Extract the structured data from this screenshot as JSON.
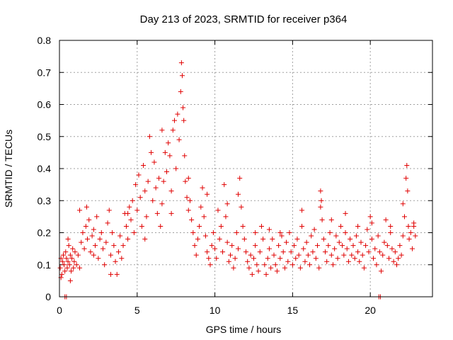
{
  "chart_data": {
    "type": "scatter",
    "title": "Day 213 of 2023, SRMTID for receiver p364",
    "xlabel": "GPS time / hours",
    "ylabel": "SRMTID / TECUs",
    "xlim": [
      0,
      24
    ],
    "ylim": [
      0,
      0.8
    ],
    "xticks": [
      0,
      5,
      10,
      15,
      20
    ],
    "yticks": [
      0,
      0.1,
      0.2,
      0.3,
      0.4,
      0.5,
      0.6,
      0.7,
      0.8
    ],
    "x_tick_labels": [
      "0",
      "5",
      "10",
      "15",
      "20"
    ],
    "y_tick_labels": [
      "0",
      "0.1",
      "0.2",
      "0.3",
      "0.4",
      "0.5",
      "0.6",
      "0.7",
      "0.8"
    ],
    "grid": true,
    "marker": "+",
    "color": "#e00000",
    "series": [
      {
        "name": "SRMTID",
        "points": [
          [
            0.05,
            0.09
          ],
          [
            0.1,
            0.12
          ],
          [
            0.15,
            0.07
          ],
          [
            0.2,
            0.11
          ],
          [
            0.25,
            0.13
          ],
          [
            0.3,
            0.1
          ],
          [
            0.35,
            0.08
          ],
          [
            0.4,
            0.14
          ],
          [
            0.45,
            0.12
          ],
          [
            0.5,
            0.09
          ],
          [
            0.55,
            0.11
          ],
          [
            0.6,
            0.16
          ],
          [
            0.65,
            0.1
          ],
          [
            0.7,
            0.13
          ],
          [
            0.75,
            0.08
          ],
          [
            0.8,
            0.12
          ],
          [
            0.85,
            0.15
          ],
          [
            0.9,
            0.09
          ],
          [
            0.95,
            0.11
          ],
          [
            1.0,
            0.14
          ],
          [
            0.1,
            0.06
          ],
          [
            0.35,
            0.0
          ],
          [
            0.45,
            0.0
          ],
          [
            0.55,
            0.18
          ],
          [
            0.7,
            0.05
          ],
          [
            1.1,
            0.1
          ],
          [
            1.2,
            0.13
          ],
          [
            1.3,
            0.09
          ],
          [
            1.4,
            0.17
          ],
          [
            1.5,
            0.2
          ],
          [
            1.6,
            0.15
          ],
          [
            1.7,
            0.22
          ],
          [
            1.75,
            0.28
          ],
          [
            1.8,
            0.18
          ],
          [
            1.9,
            0.24
          ],
          [
            2.0,
            0.14
          ],
          [
            2.1,
            0.19
          ],
          [
            2.2,
            0.21
          ],
          [
            2.3,
            0.16
          ],
          [
            2.4,
            0.25
          ],
          [
            2.5,
            0.12
          ],
          [
            2.6,
            0.18
          ],
          [
            2.7,
            0.2
          ],
          [
            2.8,
            0.15
          ],
          [
            2.9,
            0.1
          ],
          [
            3.0,
            0.17
          ],
          [
            3.1,
            0.23
          ],
          [
            3.2,
            0.27
          ],
          [
            3.3,
            0.13
          ],
          [
            3.4,
            0.2
          ],
          [
            3.5,
            0.16
          ],
          [
            3.6,
            0.11
          ],
          [
            3.7,
            0.07
          ],
          [
            3.8,
            0.14
          ],
          [
            3.9,
            0.19
          ],
          [
            4.0,
            0.12
          ],
          [
            4.1,
            0.16
          ],
          [
            4.2,
            0.26
          ],
          [
            4.3,
            0.22
          ],
          [
            4.4,
            0.18
          ],
          [
            4.5,
            0.28
          ],
          [
            4.6,
            0.24
          ],
          [
            4.7,
            0.3
          ],
          [
            4.8,
            0.2
          ],
          [
            4.9,
            0.35
          ],
          [
            5.0,
            0.27
          ],
          [
            5.1,
            0.38
          ],
          [
            5.2,
            0.31
          ],
          [
            5.3,
            0.22
          ],
          [
            5.4,
            0.41
          ],
          [
            5.5,
            0.33
          ],
          [
            5.6,
            0.25
          ],
          [
            5.7,
            0.36
          ],
          [
            5.8,
            0.5
          ],
          [
            5.9,
            0.45
          ],
          [
            6.0,
            0.3
          ],
          [
            6.1,
            0.42
          ],
          [
            6.2,
            0.34
          ],
          [
            6.3,
            0.26
          ],
          [
            6.4,
            0.37
          ],
          [
            6.5,
            0.22
          ],
          [
            6.6,
            0.29
          ],
          [
            6.7,
            0.36
          ],
          [
            6.8,
            0.45
          ],
          [
            6.9,
            0.39
          ],
          [
            7.0,
            0.48
          ],
          [
            7.1,
            0.44
          ],
          [
            7.2,
            0.33
          ],
          [
            7.3,
            0.52
          ],
          [
            7.4,
            0.55
          ],
          [
            7.5,
            0.4
          ],
          [
            7.6,
            0.57
          ],
          [
            7.7,
            0.49
          ],
          [
            7.8,
            0.64
          ],
          [
            7.85,
            0.73
          ],
          [
            7.9,
            0.69
          ],
          [
            7.95,
            0.59
          ],
          [
            8.0,
            0.55
          ],
          [
            8.05,
            0.44
          ],
          [
            8.1,
            0.36
          ],
          [
            8.2,
            0.31
          ],
          [
            8.3,
            0.27
          ],
          [
            8.4,
            0.3
          ],
          [
            8.5,
            0.24
          ],
          [
            8.6,
            0.2
          ],
          [
            8.7,
            0.16
          ],
          [
            8.8,
            0.13
          ],
          [
            8.9,
            0.18
          ],
          [
            9.0,
            0.22
          ],
          [
            9.1,
            0.28
          ],
          [
            9.2,
            0.34
          ],
          [
            9.3,
            0.25
          ],
          [
            9.4,
            0.19
          ],
          [
            9.5,
            0.14
          ],
          [
            9.6,
            0.12
          ],
          [
            9.7,
            0.1
          ],
          [
            9.8,
            0.16
          ],
          [
            9.9,
            0.2
          ],
          [
            10.0,
            0.15
          ],
          [
            10.1,
            0.12
          ],
          [
            10.2,
            0.27
          ],
          [
            10.3,
            0.18
          ],
          [
            10.4,
            0.22
          ],
          [
            10.5,
            0.14
          ],
          [
            10.6,
            0.35
          ],
          [
            10.7,
            0.25
          ],
          [
            10.8,
            0.17
          ],
          [
            10.9,
            0.11
          ],
          [
            11.0,
            0.13
          ],
          [
            11.1,
            0.16
          ],
          [
            11.2,
            0.09
          ],
          [
            11.3,
            0.12
          ],
          [
            11.4,
            0.2
          ],
          [
            11.5,
            0.15
          ],
          [
            11.6,
            0.37
          ],
          [
            11.7,
            0.28
          ],
          [
            11.8,
            0.22
          ],
          [
            11.9,
            0.18
          ],
          [
            12.0,
            0.14
          ],
          [
            12.1,
            0.11
          ],
          [
            12.2,
            0.09
          ],
          [
            12.3,
            0.13
          ],
          [
            12.4,
            0.07
          ],
          [
            12.5,
            0.12
          ],
          [
            12.6,
            0.16
          ],
          [
            12.7,
            0.1
          ],
          [
            12.8,
            0.08
          ],
          [
            12.9,
            0.14
          ],
          [
            13.0,
            0.22
          ],
          [
            13.1,
            0.18
          ],
          [
            13.2,
            0.1
          ],
          [
            13.3,
            0.07
          ],
          [
            13.4,
            0.12
          ],
          [
            13.5,
            0.15
          ],
          [
            13.6,
            0.09
          ],
          [
            13.7,
            0.18
          ],
          [
            13.8,
            0.13
          ],
          [
            13.9,
            0.1
          ],
          [
            14.0,
            0.08
          ],
          [
            14.1,
            0.16
          ],
          [
            14.2,
            0.12
          ],
          [
            14.3,
            0.19
          ],
          [
            14.4,
            0.14
          ],
          [
            14.5,
            0.09
          ],
          [
            14.6,
            0.17
          ],
          [
            14.7,
            0.11
          ],
          [
            14.8,
            0.2
          ],
          [
            14.9,
            0.14
          ],
          [
            15.0,
            0.1
          ],
          [
            15.1,
            0.16
          ],
          [
            15.2,
            0.12
          ],
          [
            15.3,
            0.18
          ],
          [
            15.4,
            0.13
          ],
          [
            15.5,
            0.09
          ],
          [
            15.6,
            0.27
          ],
          [
            15.7,
            0.15
          ],
          [
            15.8,
            0.11
          ],
          [
            15.9,
            0.17
          ],
          [
            16.0,
            0.13
          ],
          [
            16.1,
            0.1
          ],
          [
            16.2,
            0.19
          ],
          [
            16.3,
            0.14
          ],
          [
            16.4,
            0.21
          ],
          [
            16.5,
            0.12
          ],
          [
            16.6,
            0.16
          ],
          [
            16.7,
            0.09
          ],
          [
            16.8,
            0.33
          ],
          [
            16.85,
            0.3
          ],
          [
            16.9,
            0.24
          ],
          [
            17.0,
            0.18
          ],
          [
            17.1,
            0.14
          ],
          [
            17.2,
            0.11
          ],
          [
            17.3,
            0.16
          ],
          [
            17.4,
            0.2
          ],
          [
            17.5,
            0.13
          ],
          [
            17.6,
            0.1
          ],
          [
            17.7,
            0.15
          ],
          [
            17.8,
            0.19
          ],
          [
            17.9,
            0.12
          ],
          [
            18.0,
            0.17
          ],
          [
            18.1,
            0.22
          ],
          [
            18.2,
            0.16
          ],
          [
            18.3,
            0.13
          ],
          [
            18.4,
            0.2
          ],
          [
            18.5,
            0.15
          ],
          [
            18.6,
            0.11
          ],
          [
            18.7,
            0.18
          ],
          [
            18.8,
            0.13
          ],
          [
            18.9,
            0.16
          ],
          [
            19.0,
            0.12
          ],
          [
            19.1,
            0.19
          ],
          [
            19.2,
            0.14
          ],
          [
            19.3,
            0.11
          ],
          [
            19.4,
            0.17
          ],
          [
            19.5,
            0.13
          ],
          [
            19.6,
            0.09
          ],
          [
            19.7,
            0.16
          ],
          [
            19.8,
            0.21
          ],
          [
            19.9,
            0.14
          ],
          [
            20.0,
            0.25
          ],
          [
            20.1,
            0.18
          ],
          [
            20.2,
            0.12
          ],
          [
            20.3,
            0.15
          ],
          [
            20.4,
            0.1
          ],
          [
            20.5,
            0.19
          ],
          [
            20.6,
            0.14
          ],
          [
            20.7,
            0.08
          ],
          [
            20.8,
            0.13
          ],
          [
            20.9,
            0.17
          ],
          [
            21.0,
            0.24
          ],
          [
            21.1,
            0.16
          ],
          [
            21.2,
            0.12
          ],
          [
            21.3,
            0.2
          ],
          [
            21.4,
            0.15
          ],
          [
            21.5,
            0.11
          ],
          [
            21.6,
            0.14
          ],
          [
            21.7,
            0.1
          ],
          [
            21.8,
            0.12
          ],
          [
            21.9,
            0.16
          ],
          [
            22.0,
            0.13
          ],
          [
            22.1,
            0.19
          ],
          [
            22.2,
            0.25
          ],
          [
            22.3,
            0.37
          ],
          [
            22.35,
            0.41
          ],
          [
            22.4,
            0.33
          ],
          [
            22.45,
            0.22
          ],
          [
            22.5,
            0.18
          ],
          [
            22.6,
            0.2
          ],
          [
            22.7,
            0.15
          ],
          [
            22.8,
            0.23
          ],
          [
            22.9,
            0.19
          ],
          [
            20.55,
            0.0
          ],
          [
            20.65,
            0.0
          ],
          [
            1.3,
            0.27
          ],
          [
            2.2,
            0.13
          ],
          [
            3.3,
            0.07
          ],
          [
            4.4,
            0.26
          ],
          [
            5.5,
            0.18
          ],
          [
            6.6,
            0.52
          ],
          [
            7.2,
            0.26
          ],
          [
            8.3,
            0.37
          ],
          [
            9.5,
            0.32
          ],
          [
            10.8,
            0.29
          ],
          [
            11.5,
            0.32
          ],
          [
            12.6,
            0.2
          ],
          [
            13.5,
            0.21
          ],
          [
            14.2,
            0.2
          ],
          [
            15.6,
            0.22
          ],
          [
            16.8,
            0.28
          ],
          [
            17.5,
            0.24
          ],
          [
            18.4,
            0.26
          ],
          [
            19.2,
            0.22
          ],
          [
            20.1,
            0.23
          ],
          [
            21.3,
            0.22
          ],
          [
            22.1,
            0.29
          ],
          [
            22.8,
            0.22
          ]
        ]
      }
    ]
  }
}
